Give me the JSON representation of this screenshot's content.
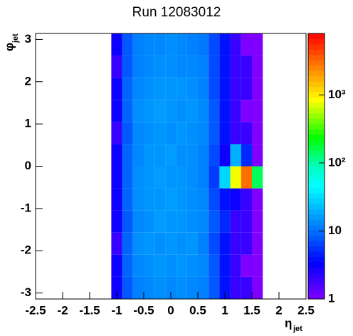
{
  "chart_data": {
    "type": "heatmap",
    "title": "Run 12083012",
    "xlabel": "η",
    "xlabel_sub": "jet",
    "ylabel": "φ",
    "ylabel_sub": "jet",
    "xlim": [
      -2.5,
      2.5
    ],
    "ylim": [
      -3.1416,
      3.1416
    ],
    "zlim": [
      1,
      8000
    ],
    "zlog": true,
    "xticks": [
      -2.5,
      -2,
      -1.5,
      -1,
      -0.5,
      0,
      0.5,
      1,
      1.5,
      2,
      2.5
    ],
    "yticks": [
      -3,
      -2,
      -1,
      0,
      1,
      2,
      3
    ],
    "zticks": [
      1,
      10,
      {
        "value": 100,
        "label": "10²"
      },
      {
        "value": 1000,
        "label": "10³"
      }
    ],
    "xbins": [
      -2.5,
      -2.3,
      -2.1,
      -1.9,
      -1.7,
      -1.5,
      -1.3,
      -1.1,
      -0.9,
      -0.7,
      -0.5,
      -0.3,
      -0.1,
      0.1,
      0.3,
      0.5,
      0.7,
      0.9,
      1.1,
      1.3,
      1.5,
      1.7,
      1.9,
      2.1,
      2.3,
      2.5
    ],
    "ybins": [
      -3.1416,
      -2.618,
      -2.0944,
      -1.5708,
      -1.0472,
      -0.5236,
      0,
      0.5236,
      1.0472,
      1.5708,
      2.0944,
      2.618,
      3.1416
    ],
    "values": [
      [
        0,
        0,
        0,
        0,
        0,
        0,
        0,
        3,
        8,
        12,
        13,
        14,
        13,
        14,
        13,
        12,
        8,
        4,
        2,
        2,
        1,
        0,
        0,
        0,
        0
      ],
      [
        0,
        0,
        0,
        0,
        0,
        0,
        0,
        3,
        9,
        13,
        14,
        15,
        14,
        15,
        14,
        13,
        8,
        4,
        2,
        1,
        1,
        0,
        0,
        0,
        0
      ],
      [
        0,
        0,
        0,
        0,
        0,
        0,
        0,
        2,
        9,
        14,
        15,
        14,
        15,
        14,
        15,
        12,
        7,
        4,
        2,
        2,
        1,
        0,
        0,
        0,
        0
      ],
      [
        0,
        0,
        0,
        0,
        0,
        0,
        0,
        3,
        8,
        13,
        14,
        16,
        15,
        15,
        14,
        13,
        8,
        5,
        2,
        2,
        1,
        0,
        0,
        0,
        0
      ],
      [
        0,
        0,
        0,
        0,
        0,
        0,
        0,
        3,
        9,
        14,
        15,
        15,
        16,
        15,
        14,
        13,
        7,
        4,
        3,
        2,
        1,
        0,
        0,
        0,
        0
      ],
      [
        0,
        0,
        0,
        0,
        0,
        0,
        0,
        3,
        9,
        14,
        15,
        16,
        15,
        15,
        14,
        12,
        6,
        30,
        800,
        3000,
        150,
        0,
        0,
        0,
        0
      ],
      [
        0,
        0,
        0,
        0,
        0,
        0,
        0,
        3,
        9,
        13,
        15,
        15,
        16,
        14,
        14,
        12,
        7,
        3,
        20,
        5,
        1,
        0,
        0,
        0,
        0
      ],
      [
        0,
        0,
        0,
        0,
        0,
        0,
        0,
        2,
        8,
        13,
        14,
        15,
        14,
        15,
        14,
        13,
        8,
        4,
        2,
        2,
        1,
        0,
        0,
        0,
        0
      ],
      [
        0,
        0,
        0,
        0,
        0,
        0,
        0,
        3,
        9,
        14,
        15,
        16,
        15,
        14,
        15,
        13,
        8,
        4,
        2,
        1,
        1,
        0,
        0,
        0,
        0
      ],
      [
        0,
        0,
        0,
        0,
        0,
        0,
        0,
        3,
        9,
        13,
        14,
        15,
        15,
        15,
        14,
        12,
        7,
        4,
        2,
        2,
        1,
        0,
        0,
        0,
        0
      ],
      [
        0,
        0,
        0,
        0,
        0,
        0,
        0,
        2,
        8,
        12,
        13,
        14,
        14,
        13,
        13,
        12,
        7,
        4,
        2,
        2,
        1,
        0,
        0,
        0,
        0
      ],
      [
        0,
        0,
        0,
        0,
        0,
        0,
        0,
        3,
        8,
        12,
        13,
        13,
        14,
        13,
        12,
        11,
        7,
        4,
        2,
        1,
        1,
        0,
        0,
        0,
        0
      ]
    ]
  }
}
